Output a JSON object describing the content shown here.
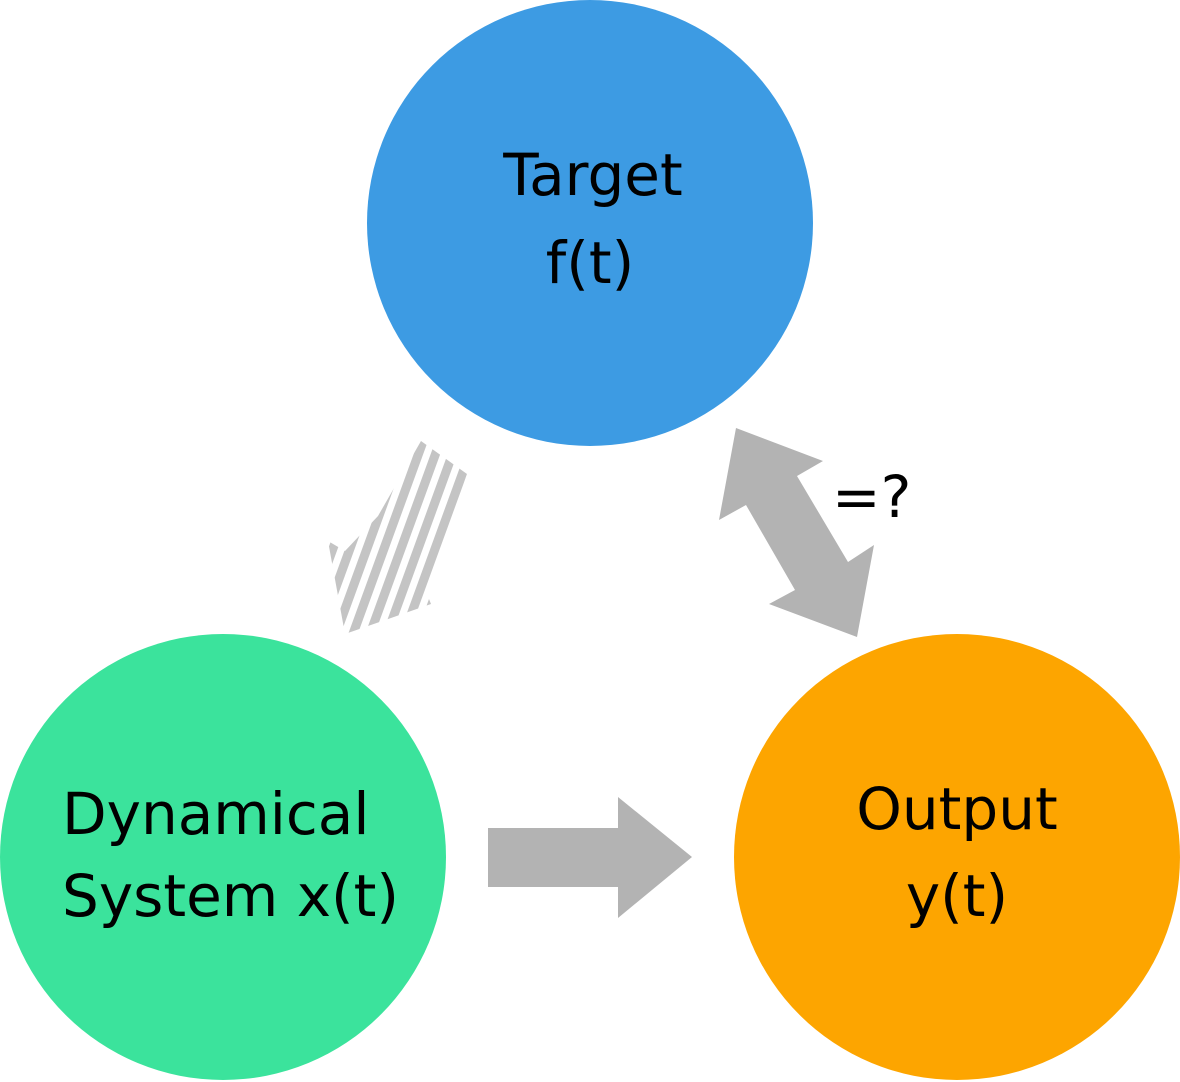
{
  "nodes": {
    "target": {
      "line1": "Target",
      "line2": "f(t)",
      "color": "#3d9be3"
    },
    "dynamical": {
      "line1": "Dynamical",
      "line2": "System x(t)",
      "color": "#3be39c"
    },
    "output": {
      "line1": "Output",
      "line2": "y(t)",
      "color": "#fda500"
    }
  },
  "edges": {
    "compare_label": "=?",
    "arrow_color": "#b3b3b3"
  }
}
